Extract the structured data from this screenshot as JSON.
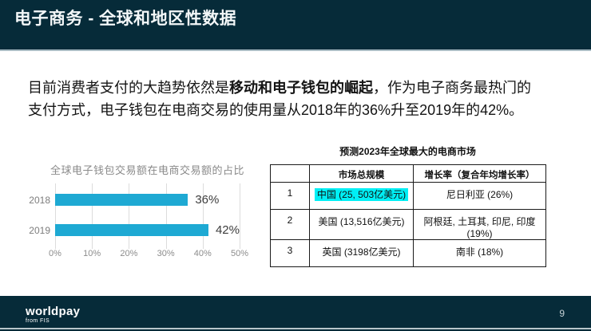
{
  "slide": {
    "title": "电子商务 - 全球和地区性数据",
    "page_number": "9"
  },
  "body": {
    "text_prefix": "目前消费者支付的大趋势依然是",
    "text_bold": "移动和电子钱包的崛起",
    "text_suffix": "，作为电子商务最热门的支付方式，电子钱包在电商交易的使用量从2018年的36%升至2019年的42%。"
  },
  "chart_data": {
    "type": "bar",
    "orientation": "horizontal",
    "title": "全球电子钱包交易额在电商交易额的占比",
    "categories": [
      "2018",
      "2019"
    ],
    "values": [
      36,
      42
    ],
    "data_labels": [
      "36%",
      "42%"
    ],
    "x_ticks": [
      "0%",
      "10%",
      "20%",
      "30%",
      "40%",
      "50%"
    ],
    "xlim": [
      0,
      50
    ],
    "grid": true,
    "legend": false,
    "bar_color": "#1ea9d3"
  },
  "table": {
    "title": "预测2023年全球最大的电商市场",
    "headers": [
      "",
      "市场总规模",
      "增长率（复合年均增长率）"
    ],
    "rows": [
      {
        "rank": "1",
        "market": "中国 (25, 503亿美元)",
        "growth": "尼日利亚 (26%)",
        "highlight": true
      },
      {
        "rank": "2",
        "market": "美国 (13,516亿美元)",
        "growth": "阿根廷, 土耳其, 印尼, 印度 (19%)",
        "highlight": false
      },
      {
        "rank": "3",
        "market": "英国 (3198亿美元)",
        "growth": "南非 (18%)",
        "highlight": false
      }
    ],
    "highlight_color": "#00eff5"
  },
  "footer": {
    "logo_primary": "worldpay",
    "logo_secondary": "from FIS",
    "page_number": "9"
  },
  "colors": {
    "brand_dark": "#062b39",
    "bar_cyan": "#1ea9d3",
    "highlight_cyan": "#00eff5"
  }
}
